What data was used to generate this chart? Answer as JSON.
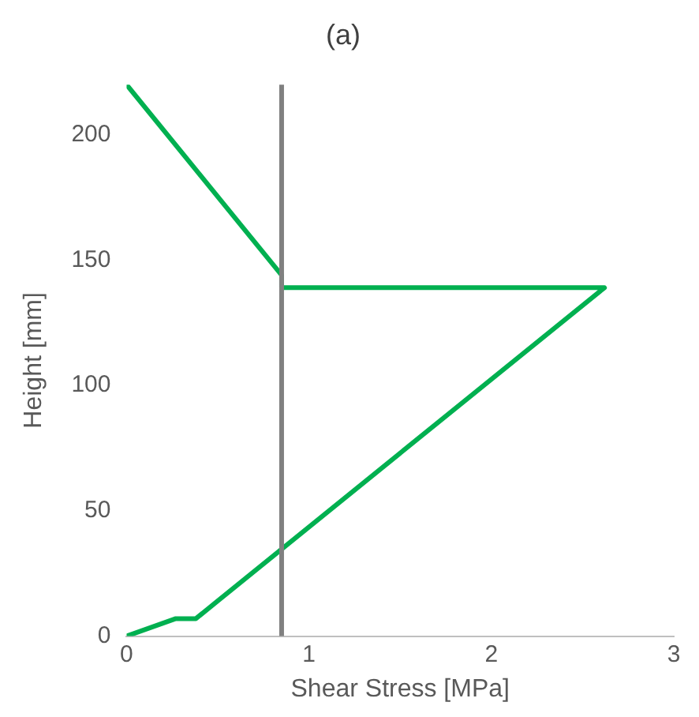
{
  "chart_data": {
    "type": "line",
    "title": "(a)",
    "xlabel": "Shear Stress [MPa]",
    "ylabel": "Height [mm]",
    "series": [
      {
        "color": "#00b050",
        "x": [
          0,
          0.27,
          0.38,
          2.62,
          0.85,
          0.85,
          0
        ],
        "values": [
          0,
          7,
          7,
          139,
          139,
          144,
          220
        ]
      }
    ],
    "xlim": [
      0,
      3
    ],
    "xticks": [
      0,
      1,
      2,
      3
    ],
    "ylim": [
      0,
      220
    ],
    "yticks": [
      0,
      50,
      100,
      150,
      200
    ],
    "grid": false,
    "legend": false,
    "marker": "none",
    "ref_lines": [
      {
        "axis": "x",
        "value": 0.85,
        "color": "#808080"
      }
    ]
  }
}
